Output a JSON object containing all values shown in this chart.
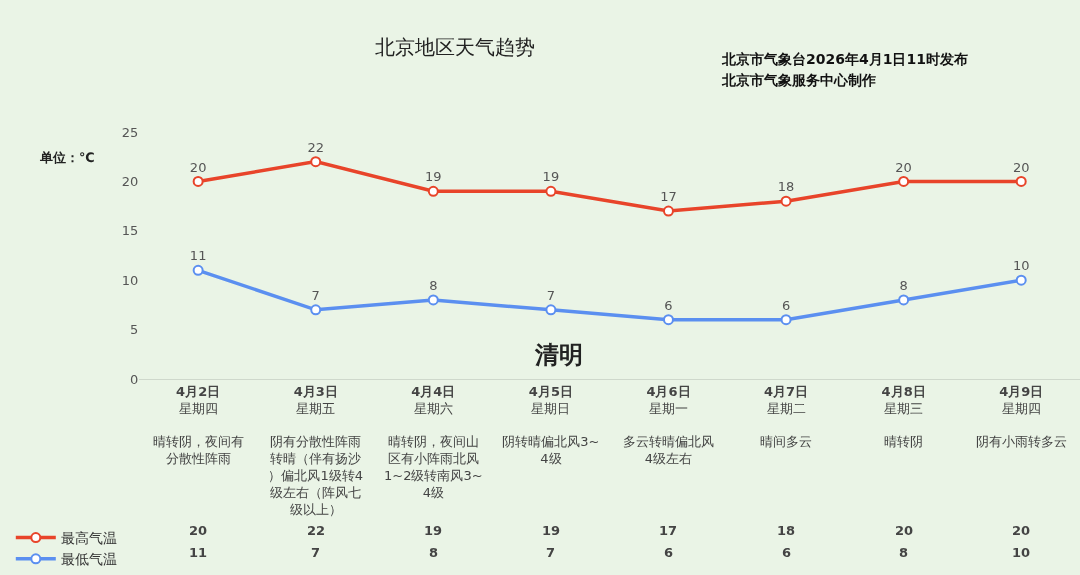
{
  "chart_data": {
    "type": "line",
    "title": "北京地区天气趋势",
    "ylabel": "单位：℃",
    "categories": [
      "4月2日星期四晴转阴，夜间有分散性阵雨",
      "4月3日星期五阴有分散性阵雨转晴（伴有扬沙）偏北风1级转4级左右（阵风七级以上）",
      "4月4日星期六晴转阴，夜间山区有小阵雨北风1~2级转南风3~4级",
      "4月5日星期日阴转晴偏北风3~4级",
      "4月6日星期一多云转晴偏北风4级左右",
      "4月7日星期二晴间多云",
      "4月8日星期三晴转阴",
      "4月9日星期四阴有小雨转多云"
    ],
    "series": [
      {
        "name": "最高气温",
        "color": "#e8442a",
        "values": [
          20,
          22,
          19,
          19,
          17,
          18,
          20,
          20
        ],
        "value_labels": [
          "20",
          "22",
          "19",
          "19",
          "17",
          "18",
          "20",
          "20"
        ]
      },
      {
        "name": "最低气温",
        "color": "#5b8ff0",
        "values": [
          11,
          7,
          8,
          7,
          6,
          6,
          8,
          10
        ],
        "value_labels": [
          "11",
          "7",
          "8",
          "7",
          "6",
          "6",
          "8",
          "10"
        ]
      }
    ],
    "ylim": [
      0,
      25
    ],
    "yticks": [
      0,
      5,
      10,
      15,
      20,
      25
    ],
    "grid": false,
    "marker": "circle",
    "line_style": "solid",
    "legend": "bottom left",
    "data_labels": true,
    "annotations": [
      "北京市气象台2026年4月1日11时发布",
      "北京市气象服务中心制作",
      "清明"
    ]
  }
}
